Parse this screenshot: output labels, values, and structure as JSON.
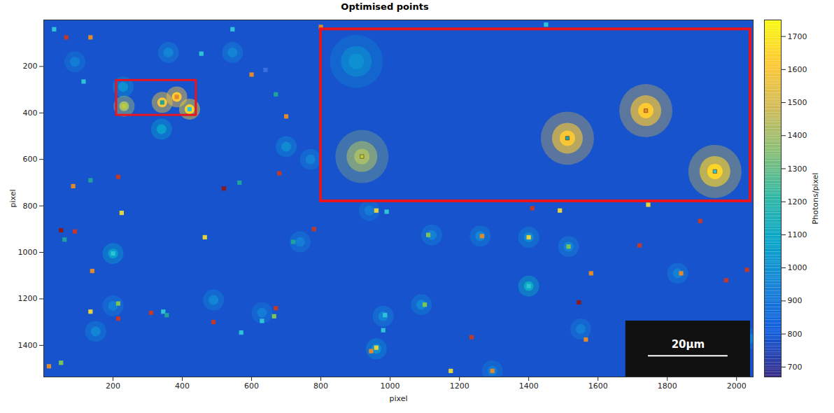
{
  "chart_data": {
    "type": "image",
    "title": "Optimised points",
    "x_label": "pixel",
    "y_label": "pixel",
    "xlim": [
      0,
      2048
    ],
    "ylim": [
      1536,
      0
    ],
    "xticks": [
      200,
      400,
      600,
      800,
      1000,
      1200,
      1400,
      1600,
      1800,
      2000
    ],
    "yticks": [
      200,
      400,
      600,
      800,
      1000,
      1200,
      1400
    ],
    "background": 780,
    "spots": {
      "x": [
        229,
        232,
        342,
        384,
        421,
        360,
        545,
        90,
        700,
        770,
        340,
        490,
        1090,
        150,
        200,
        630,
        1515,
        1400,
        1260,
        1830,
        960,
        740,
        980,
        1550,
        2040,
        940,
        1120,
        200,
        1400,
        1295
      ],
      "y": [
        288,
        371,
        355,
        331,
        384,
        140,
        140,
        180,
        545,
        600,
        470,
        1205,
        1225,
        1340,
        1230,
        1260,
        975,
        935,
        930,
        1090,
        1415,
        955,
        1275,
        1330,
        1370,
        820,
        925,
        1005,
        1145,
        1510
      ],
      "values": [
        1000,
        1400,
        1600,
        1620,
        1650,
        950,
        950,
        920,
        980,
        940,
        1050,
        960,
        960,
        960,
        930,
        920,
        950,
        970,
        960,
        940,
        1000,
        930,
        950,
        930,
        930,
        920,
        940,
        1050,
        1100,
        920
      ]
    },
    "points": {
      "x": [
        30,
        65,
        135,
        115,
        455,
        545,
        640,
        600,
        670,
        700,
        232,
        342,
        384,
        421,
        85,
        135,
        215,
        225,
        520,
        565,
        680,
        780,
        50,
        60,
        90,
        465,
        720,
        960,
        990,
        1110,
        1265,
        1400,
        1490,
        1410,
        1515,
        1745,
        1720,
        1895,
        1840,
        1970,
        2030,
        1580,
        1545,
        1400,
        1100,
        985,
        980,
        960,
        945,
        1235,
        1175,
        1295,
        1565,
        140,
        135,
        215,
        215,
        200,
        310,
        345,
        355,
        490,
        570,
        630,
        665,
        670,
        15,
        50,
        1450,
        800
      ],
      "y": [
        40,
        75,
        75,
        265,
        145,
        40,
        215,
        235,
        320,
        415,
        371,
        355,
        331,
        384,
        715,
        690,
        675,
        830,
        725,
        700,
        660,
        900,
        905,
        945,
        910,
        935,
        955,
        820,
        825,
        925,
        930,
        935,
        820,
        810,
        975,
        795,
        970,
        865,
        1090,
        1120,
        1075,
        1090,
        1215,
        1145,
        1225,
        1270,
        1335,
        1410,
        1425,
        1365,
        1510,
        1510,
        1375,
        1080,
        1255,
        1220,
        1285,
        1005,
        1260,
        1255,
        1270,
        1300,
        1345,
        1295,
        1275,
        1240,
        1490,
        1475,
        20,
        30
      ],
      "colors": [
        "#2ec4d6",
        "#c0392b",
        "#e08a2c",
        "#2ec4d6",
        "#2ec4d6",
        "#2ec4d6",
        "#3a6ee0",
        "#e08a2c",
        "#1fa39a",
        "#e08a2c",
        "#b9cf3a",
        "#1fa39a",
        "#e08a2c",
        "#2ec4d6",
        "#e08a2c",
        "#1fa39a",
        "#c0392b",
        "#e6d23a",
        "#8b1a1a",
        "#1fa39a",
        "#c0392b",
        "#c0392b",
        "#8b1a1a",
        "#1fa39a",
        "#c0392b",
        "#e6d23a",
        "#1fa39a",
        "#e6d23a",
        "#2ec4d6",
        "#7cc45a",
        "#e08a2c",
        "#e6d23a",
        "#e6d23a",
        "#c0392b",
        "#7cc45a",
        "#e6d23a",
        "#c0392b",
        "#c0392b",
        "#e08a2c",
        "#c0392b",
        "#c0392b",
        "#e08a2c",
        "#8b1a1a",
        "#2ec4d6",
        "#7cc45a",
        "#2ec4d6",
        "#2ec4d6",
        "#e6d23a",
        "#e08a2c",
        "#c0392b",
        "#e6d23a",
        "#e08a2c",
        "#e08a2c",
        "#e08a2c",
        "#e6d23a",
        "#7cc45a",
        "#c0392b",
        "#2ec4d6",
        "#c0392b",
        "#2ec4d6",
        "#1fa39a",
        "#c0392b",
        "#2ec4d6",
        "#2ec4d6",
        "#7cc45a",
        "#c0392b",
        "#e08a2c",
        "#7cc45a",
        "#2ec4d6",
        "#e08a2c"
      ]
    },
    "inset": {
      "source": {
        "xlim": [
          210,
          440
        ],
        "ylim": [
          260,
          410
        ]
      },
      "target": {
        "xlim": [
          800,
          2040
        ],
        "ylim": [
          40,
          780
        ]
      },
      "color": "#e8141e"
    },
    "scale_bar": {
      "label": "20µm",
      "x1": 1745,
      "x2": 1975,
      "y": 1445
    },
    "colorbar": {
      "label": "Photons/pixel",
      "lim": [
        670,
        1750
      ],
      "ticks": [
        700,
        800,
        900,
        1000,
        1100,
        1200,
        1300,
        1400,
        1500,
        1600,
        1700
      ]
    }
  }
}
